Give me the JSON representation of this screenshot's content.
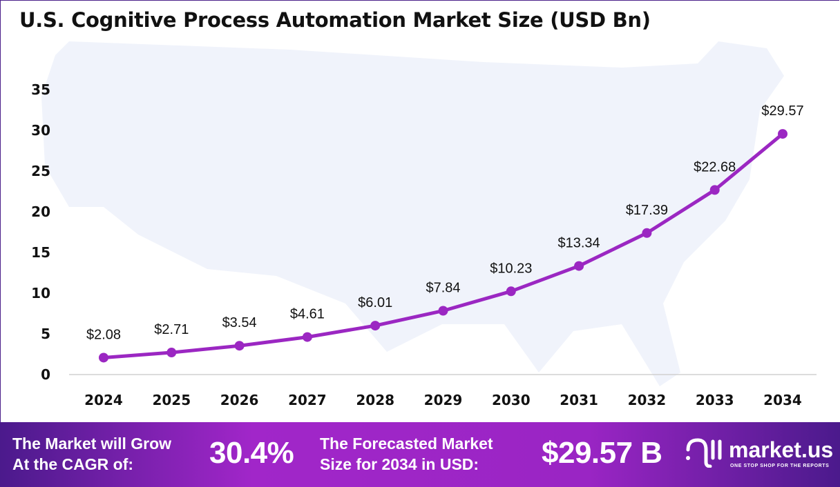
{
  "chart_data": {
    "type": "line",
    "title": "U.S. Cognitive Process Automation Market Size (USD Bn)",
    "categories": [
      "2024",
      "2025",
      "2026",
      "2027",
      "2028",
      "2029",
      "2030",
      "2031",
      "2032",
      "2033",
      "2034"
    ],
    "values": [
      2.08,
      2.71,
      3.54,
      4.61,
      6.01,
      7.84,
      10.23,
      13.34,
      17.39,
      22.68,
      29.57
    ],
    "data_labels": [
      "$2.08",
      "$2.71",
      "$3.54",
      "$4.61",
      "$6.01",
      "$7.84",
      "$10.23",
      "$13.34",
      "$17.39",
      "$22.68",
      "$29.57"
    ],
    "ylim": [
      0,
      35
    ],
    "yticks": [
      "0",
      "5",
      "10",
      "15",
      "20",
      "25",
      "30",
      "35"
    ],
    "grid": false,
    "line_color": "#9b27c2"
  },
  "footer": {
    "cagr_label_1": "The Market will Grow",
    "cagr_label_2": "At the CAGR of:",
    "cagr_value": "30.4%",
    "forecast_label_1": "The Forecasted Market",
    "forecast_label_2": "Size for 2034 in USD:",
    "forecast_value": "$29.57 B",
    "logo_name": "market.us",
    "logo_tagline": "ONE STOP SHOP FOR THE REPORTS"
  }
}
